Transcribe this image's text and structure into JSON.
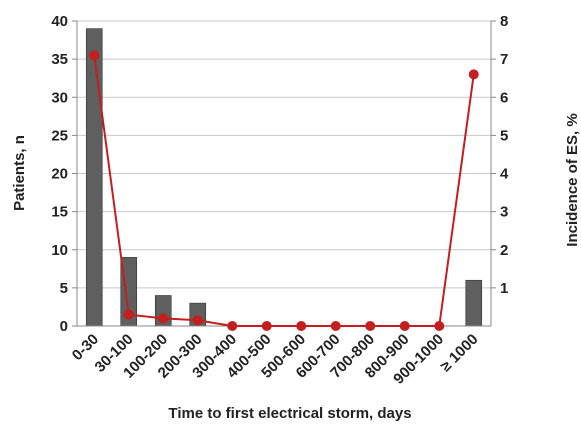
{
  "chart_data": {
    "type": "bar",
    "categories": [
      "0-30",
      "30-100",
      "100-200",
      "200-300",
      "300-400",
      "400-500",
      "500-600",
      "600-700",
      "700-800",
      "800-900",
      "900-1000",
      "≥ 1000"
    ],
    "series": [
      {
        "values": [
          39,
          9,
          4,
          3,
          0,
          0,
          0,
          0,
          0,
          0,
          0,
          6
        ],
        "type": "bar",
        "axis": "left",
        "color": "#5f5f5f"
      },
      {
        "values": [
          7.1,
          0.3,
          0.2,
          0.15,
          0,
          0,
          0,
          0,
          0,
          0,
          0,
          6.6
        ],
        "type": "line",
        "axis": "right",
        "color": "#c41e1e"
      }
    ],
    "xlabel": "Time to first electrical storm, days",
    "ylabel": "Patients, n",
    "y2label": "Incidence of ES, %",
    "ylim": [
      0,
      40
    ],
    "y2lim": [
      0,
      8
    ],
    "yticks": [
      0,
      5,
      10,
      15,
      20,
      25,
      30,
      35,
      40
    ],
    "y2ticks": [
      1,
      2,
      3,
      4,
      5,
      6,
      7,
      8
    ],
    "grid": true,
    "legend": "none"
  }
}
